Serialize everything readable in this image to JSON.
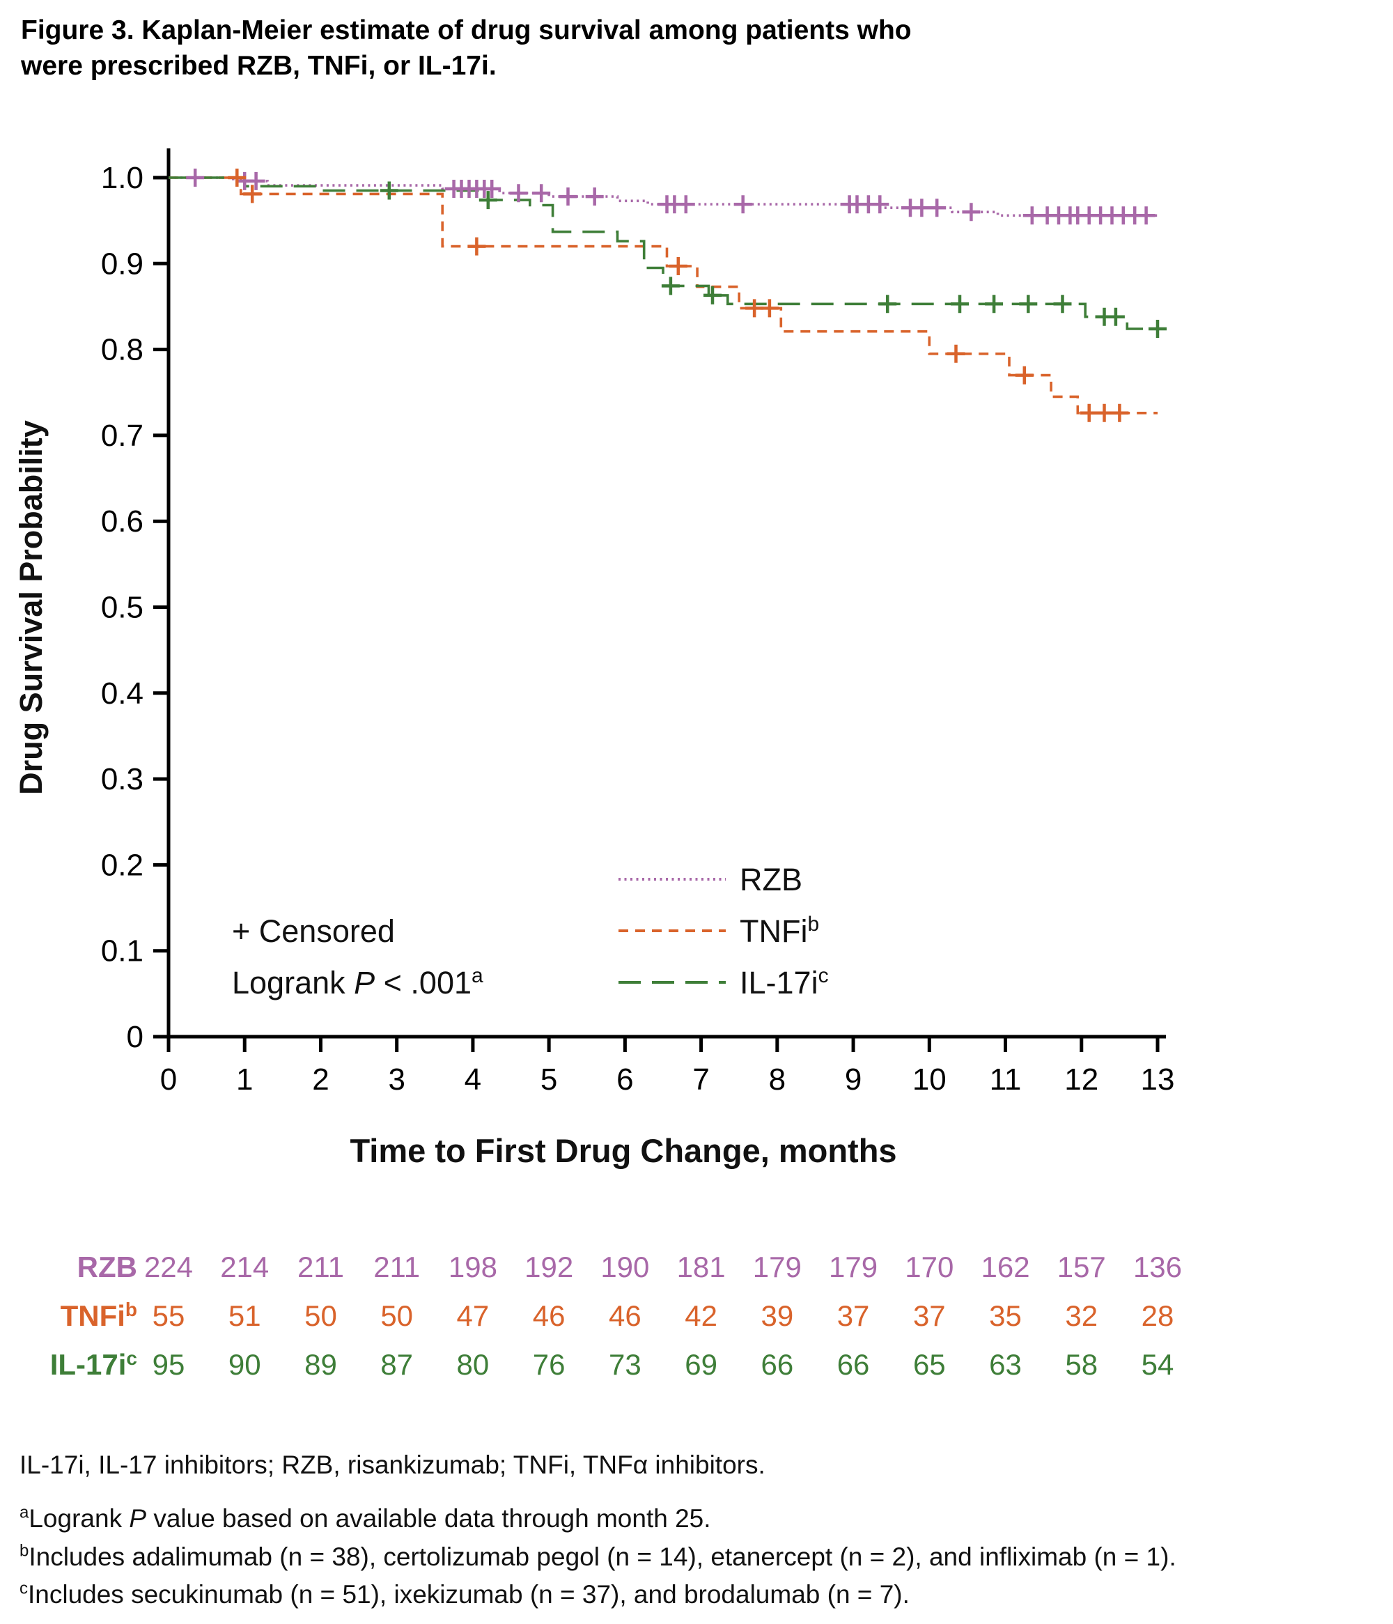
{
  "figure": {
    "title": "Figure 3. Kaplan-Meier estimate of drug survival among patients who were prescribed RZB, TNFi, or IL-17i."
  },
  "chart_data": {
    "type": "line",
    "subtype": "kaplan_meier_step",
    "title": "",
    "xlabel": "Time to First Drug Change, months",
    "ylabel": "Drug Survival Probability",
    "xlim": [
      0,
      13
    ],
    "ylim": [
      0,
      1.0
    ],
    "grid": false,
    "xticks": [
      0,
      1,
      2,
      3,
      4,
      5,
      6,
      7,
      8,
      9,
      10,
      11,
      12,
      13
    ],
    "yticks": [
      0,
      0.1,
      0.2,
      0.3,
      0.4,
      0.5,
      0.6,
      0.7,
      0.8,
      0.9,
      1.0
    ],
    "ytick_labels": [
      "0",
      "0.1",
      "0.2",
      "0.3",
      "0.4",
      "0.5",
      "0.6",
      "0.7",
      "0.8",
      "0.9",
      "1.0"
    ],
    "legend": {
      "censored_label": "+ Censored",
      "logrank_text": "Logrank ",
      "logrank_italic": "P",
      "logrank_rest": " < .001",
      "logrank_sup": "a"
    },
    "series": [
      {
        "name": "RZB",
        "sup": "",
        "color": "#a868a8",
        "line_style": "dotted",
        "steps": [
          [
            0,
            1.0
          ],
          [
            0.85,
            0.996
          ],
          [
            1.3,
            0.991
          ],
          [
            3.6,
            0.987
          ],
          [
            4.35,
            0.982
          ],
          [
            5.0,
            0.978
          ],
          [
            5.9,
            0.973
          ],
          [
            6.3,
            0.969
          ],
          [
            9.4,
            0.965
          ],
          [
            10.3,
            0.96
          ],
          [
            10.9,
            0.956
          ],
          [
            13,
            0.956
          ]
        ],
        "censor_marks": [
          [
            0.35,
            1.0
          ],
          [
            1.0,
            0.996
          ],
          [
            1.15,
            0.996
          ],
          [
            3.75,
            0.987
          ],
          [
            3.85,
            0.987
          ],
          [
            3.95,
            0.987
          ],
          [
            4.05,
            0.987
          ],
          [
            4.15,
            0.987
          ],
          [
            4.25,
            0.987
          ],
          [
            4.6,
            0.982
          ],
          [
            4.9,
            0.982
          ],
          [
            5.25,
            0.978
          ],
          [
            5.6,
            0.978
          ],
          [
            6.55,
            0.969
          ],
          [
            6.65,
            0.969
          ],
          [
            6.8,
            0.969
          ],
          [
            7.55,
            0.969
          ],
          [
            8.95,
            0.969
          ],
          [
            9.05,
            0.969
          ],
          [
            9.2,
            0.969
          ],
          [
            9.35,
            0.969
          ],
          [
            9.75,
            0.965
          ],
          [
            9.9,
            0.965
          ],
          [
            10.1,
            0.965
          ],
          [
            10.55,
            0.96
          ],
          [
            11.35,
            0.956
          ],
          [
            11.55,
            0.956
          ],
          [
            11.7,
            0.956
          ],
          [
            11.85,
            0.956
          ],
          [
            11.95,
            0.956
          ],
          [
            12.1,
            0.956
          ],
          [
            12.25,
            0.956
          ],
          [
            12.4,
            0.956
          ],
          [
            12.55,
            0.956
          ],
          [
            12.7,
            0.956
          ],
          [
            12.85,
            0.956
          ]
        ]
      },
      {
        "name": "TNFi",
        "sup": "b",
        "color": "#d9632b",
        "line_style": "dashed",
        "steps": [
          [
            0,
            1.0
          ],
          [
            0.95,
            0.981
          ],
          [
            3.6,
            0.92
          ],
          [
            6.55,
            0.897
          ],
          [
            6.95,
            0.873
          ],
          [
            7.5,
            0.848
          ],
          [
            8.05,
            0.821
          ],
          [
            10.0,
            0.795
          ],
          [
            11.05,
            0.77
          ],
          [
            11.6,
            0.745
          ],
          [
            11.95,
            0.726
          ],
          [
            13,
            0.726
          ]
        ],
        "censor_marks": [
          [
            0.9,
            1.0
          ],
          [
            1.1,
            0.981
          ],
          [
            4.05,
            0.92
          ],
          [
            6.7,
            0.897
          ],
          [
            7.7,
            0.848
          ],
          [
            7.9,
            0.848
          ],
          [
            10.35,
            0.795
          ],
          [
            11.25,
            0.77
          ],
          [
            12.1,
            0.726
          ],
          [
            12.3,
            0.726
          ],
          [
            12.5,
            0.726
          ]
        ]
      },
      {
        "name": "IL-17i",
        "sup": "c",
        "color": "#3e7e38",
        "line_style": "longdash",
        "steps": [
          [
            0,
            1.0
          ],
          [
            1.0,
            0.99
          ],
          [
            2.0,
            0.985
          ],
          [
            4.1,
            0.974
          ],
          [
            4.75,
            0.968
          ],
          [
            5.05,
            0.937
          ],
          [
            5.9,
            0.926
          ],
          [
            6.25,
            0.895
          ],
          [
            6.5,
            0.874
          ],
          [
            7.1,
            0.863
          ],
          [
            7.35,
            0.853
          ],
          [
            12.05,
            0.838
          ],
          [
            12.6,
            0.824
          ],
          [
            13,
            0.824
          ]
        ],
        "censor_marks": [
          [
            2.9,
            0.985
          ],
          [
            4.2,
            0.974
          ],
          [
            6.6,
            0.874
          ],
          [
            7.15,
            0.863
          ],
          [
            9.45,
            0.853
          ],
          [
            10.4,
            0.853
          ],
          [
            10.85,
            0.853
          ],
          [
            11.3,
            0.853
          ],
          [
            11.75,
            0.853
          ],
          [
            12.3,
            0.838
          ],
          [
            12.45,
            0.838
          ],
          [
            13,
            0.824
          ]
        ]
      }
    ],
    "risk_table": {
      "rows": [
        {
          "label": "RZB",
          "sup": "",
          "color": "#a868a8",
          "values": [
            "224",
            "214",
            "211",
            "211",
            "198",
            "192",
            "190",
            "181",
            "179",
            "179",
            "170",
            "162",
            "157",
            "136"
          ]
        },
        {
          "label": "TNFi",
          "sup": "b",
          "color": "#d9632b",
          "values": [
            "55",
            "51",
            "50",
            "50",
            "47",
            "46",
            "46",
            "42",
            "39",
            "37",
            "37",
            "35",
            "32",
            "28"
          ]
        },
        {
          "label": "IL-17i",
          "sup": "c",
          "color": "#3e7e38",
          "values": [
            "95",
            "90",
            "89",
            "87",
            "80",
            "76",
            "73",
            "69",
            "66",
            "66",
            "65",
            "63",
            "58",
            "54"
          ]
        }
      ]
    }
  },
  "footnotes": [
    {
      "sup": "",
      "gap_after": true,
      "parts": [
        {
          "text": "IL-17i, IL-17 inhibitors; RZB, risankizumab; TNFi, TNFα inhibitors.",
          "italic": false
        }
      ]
    },
    {
      "sup": "a",
      "gap_after": false,
      "parts": [
        {
          "text": "Logrank ",
          "italic": false
        },
        {
          "text": "P",
          "italic": true
        },
        {
          "text": " value based on available data through month 25.",
          "italic": false
        }
      ]
    },
    {
      "sup": "b",
      "gap_after": false,
      "parts": [
        {
          "text": "Includes adalimumab (n = 38), certolizumab pegol (n = 14), etanercept (n = 2), and infliximab (n = 1).",
          "italic": false
        }
      ]
    },
    {
      "sup": "c",
      "gap_after": false,
      "parts": [
        {
          "text": "Includes secukinumab (n = 51), ixekizumab (n = 37), and brodalumab (n = 7).",
          "italic": false
        }
      ]
    }
  ]
}
